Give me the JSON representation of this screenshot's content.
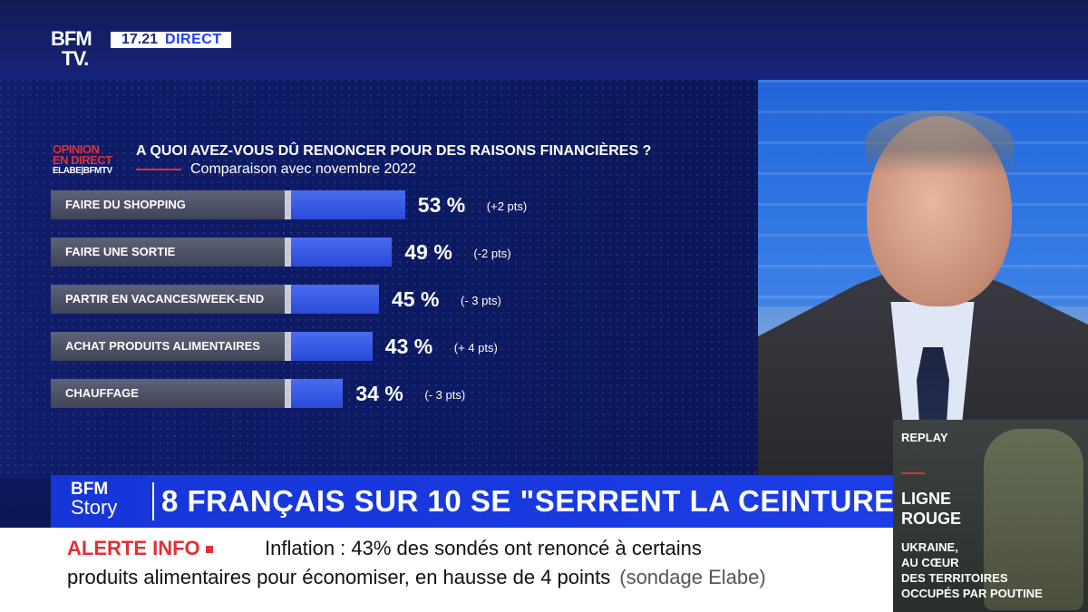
{
  "channel": {
    "logo_line1": "BFM",
    "logo_line2": "TV.",
    "time": "17.21",
    "live": "DIRECT"
  },
  "badge": {
    "line1": "OPINION",
    "line2": "EN DIRECT",
    "line3a": "ELABE",
    "line3b": "BFMTV"
  },
  "chart_data": {
    "type": "bar",
    "title": "A QUOI AVEZ-VOUS DÛ RENONCER POUR DES RAISONS FINANCIÈRES ?",
    "subtitle": "Comparaison avec novembre 2022",
    "categories": [
      "FAIRE DU SHOPPING",
      "FAIRE UNE SORTIE",
      "PARTIR EN VACANCES/WEEK-END",
      "ACHAT PRODUITS ALIMENTAIRES",
      "CHAUFFAGE"
    ],
    "values": [
      53,
      49,
      45,
      43,
      34
    ],
    "value_labels": [
      "53 %",
      "49 %",
      "45 %",
      "43 %",
      "34 %"
    ],
    "deltas": [
      "(+2 pts)",
      "(-2 pts)",
      "(- 3 pts)",
      "(+ 4 pts)",
      "(- 3 pts)"
    ],
    "orientation": "horizontal",
    "grid": false
  },
  "headline": {
    "story_line1": "BFM",
    "story_line2": "Story",
    "text": "8 FRANÇAIS SUR 10 SE \"SERRENT LA CEINTURE\""
  },
  "alert": {
    "tag": "ALERTE INFO",
    "line1": "Inflation : 43% des sondés ont renoncé à certains",
    "line2": "produits alimentaires pour économiser, en hausse de 4 points",
    "source": "(sondage Elabe)"
  },
  "replay": {
    "tag": "REPLAY",
    "title_line1": "LIGNE",
    "title_line2": "ROUGE",
    "sub_line1": "UKRAINE,",
    "sub_line2": "AU CŒUR",
    "sub_line3": "DES TERRITOIRES",
    "sub_line4": "OCCUPÉS PAR POUTINE"
  },
  "colors": {
    "accent_red": "#e0303a",
    "bar_blue": "#2f52e0",
    "band_blue": "#1c3ce6"
  }
}
